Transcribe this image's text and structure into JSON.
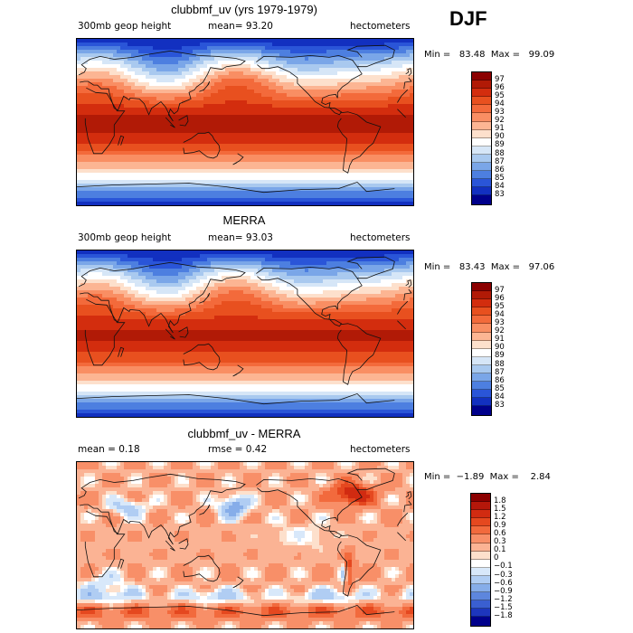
{
  "season": "DJF",
  "panels": [
    {
      "title": "clubbmf_uv (yrs 1979-1979)",
      "left_text": "300mb  geop height",
      "mid_text": "mean=   93.20",
      "right_text": "hectometers",
      "minmax": "Min =   83.48  Max =   99.09",
      "colorbar_levels": [
        "97",
        "96",
        "95",
        "94",
        "93",
        "92",
        "91",
        "90",
        "89",
        "88",
        "87",
        "86",
        "85",
        "84",
        "83"
      ],
      "colorbar_colors": [
        "#8b0000",
        "#b11a06",
        "#d32d0e",
        "#e8501f",
        "#f36a3b",
        "#f98e63",
        "#fcb593",
        "#fde0cc",
        "#ffffff",
        "#d6e6f7",
        "#a9c9ef",
        "#7aa6e8",
        "#4d7fe0",
        "#2a55d8",
        "#1230c0",
        "#00008b"
      ],
      "field": "abs_model"
    },
    {
      "title": "MERRA",
      "left_text": "300mb  geop height",
      "mid_text": "mean=   93.03",
      "right_text": "hectometers",
      "minmax": "Min =   83.43  Max =   97.06",
      "colorbar_levels": [
        "97",
        "96",
        "95",
        "94",
        "93",
        "92",
        "91",
        "90",
        "89",
        "88",
        "87",
        "86",
        "85",
        "84",
        "83"
      ],
      "colorbar_colors": [
        "#8b0000",
        "#b11a06",
        "#d32d0e",
        "#e8501f",
        "#f36a3b",
        "#f98e63",
        "#fcb593",
        "#fde0cc",
        "#ffffff",
        "#d6e6f7",
        "#a9c9ef",
        "#7aa6e8",
        "#4d7fe0",
        "#2a55d8",
        "#1230c0",
        "#00008b"
      ],
      "field": "abs_obs"
    },
    {
      "title": "clubbmf_uv - MERRA",
      "left_text": "mean =     0.18",
      "mid_text": "rmse =     0.42",
      "right_text": "hectometers",
      "minmax": "Min =  −1.89  Max =    2.84",
      "colorbar_levels": [
        "1.8",
        "1.5",
        "1.2",
        "0.9",
        "0.6",
        "0.3",
        "0.1",
        "0",
        "−0.1",
        "−0.3",
        "−0.6",
        "−0.9",
        "−1.2",
        "−1.5",
        "−1.8"
      ],
      "colorbar_colors": [
        "#8b0000",
        "#b5170a",
        "#d12b11",
        "#e5481f",
        "#f26a3d",
        "#f88f68",
        "#fbb394",
        "#fde0cc",
        "#ffffff",
        "#d8e8fa",
        "#b0cdf3",
        "#86ade9",
        "#5d86dd",
        "#3a5fd1",
        "#1d36bd",
        "#00008b"
      ],
      "field": "diff"
    }
  ]
}
